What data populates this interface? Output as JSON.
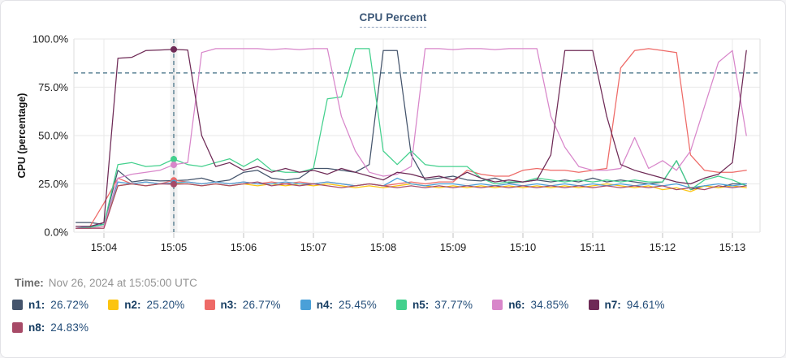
{
  "time_row": {
    "label": "Time:",
    "value": "Nov 26, 2024 at 15:05:00 UTC"
  },
  "chart_data": {
    "type": "line",
    "title": "CPU Percent",
    "ylabel": "CPU (percentage)",
    "ylim": [
      0,
      100
    ],
    "y_ticks": [
      {
        "label": "0.0%",
        "value": 0
      },
      {
        "label": "25.0%",
        "value": 25
      },
      {
        "label": "50.0%",
        "value": 50
      },
      {
        "label": "75.0%",
        "value": 75
      },
      {
        "label": "100.0%",
        "value": 100
      }
    ],
    "x_ticks": [
      {
        "label": "15:04",
        "minute": 4
      },
      {
        "label": "15:05",
        "minute": 5
      },
      {
        "label": "15:06",
        "minute": 6
      },
      {
        "label": "15:07",
        "minute": 7
      },
      {
        "label": "15:08",
        "minute": 8
      },
      {
        "label": "15:09",
        "minute": 9
      },
      {
        "label": "15:10",
        "minute": 10
      },
      {
        "label": "15:11",
        "minute": 11
      },
      {
        "label": "15:12",
        "minute": 12
      },
      {
        "label": "15:13",
        "minute": 13
      }
    ],
    "grid": true,
    "legend_position": "bottom",
    "crosshair": {
      "x_minute": 5.0,
      "y_percent": 82.4
    },
    "x_start_minute": 3.6,
    "x_step_minute": 0.2,
    "series": [
      {
        "name": "n1",
        "label": "n1:",
        "value_at_cursor": "26.72%",
        "cursor_value": 26.72,
        "color": "#44546c",
        "legend_row": 1,
        "values": [
          5,
          5,
          4,
          32,
          26,
          27,
          26.5,
          26.7,
          27,
          28,
          26,
          27,
          31,
          32,
          28,
          27,
          28,
          33,
          33,
          32,
          31,
          35,
          94,
          94,
          40,
          27,
          28,
          29,
          27,
          26.5,
          28,
          25.5,
          26,
          27,
          26,
          27,
          26,
          28,
          26,
          27,
          26,
          25,
          26,
          37,
          22,
          24,
          23,
          25,
          25
        ]
      },
      {
        "name": "n2",
        "label": "n2:",
        "value_at_cursor": "25.20%",
        "cursor_value": 25.2,
        "color": "#fcc40f",
        "legend_row": 1,
        "values": [
          2,
          2,
          3,
          24,
          25,
          24,
          25,
          25.2,
          25,
          24,
          25,
          24,
          25,
          24,
          25,
          24,
          25,
          24,
          25,
          24,
          23,
          24,
          23,
          24,
          25,
          24,
          23,
          24,
          23,
          24,
          23,
          24,
          23,
          24,
          23,
          24,
          23,
          24,
          25,
          24,
          23,
          24,
          22,
          23,
          21,
          24,
          23,
          24,
          23
        ]
      },
      {
        "name": "n3",
        "label": "n3:",
        "value_at_cursor": "26.77%",
        "cursor_value": 26.77,
        "color": "#ee6a67",
        "legend_row": 1,
        "values": [
          2,
          3,
          15,
          28,
          25,
          26,
          25,
          26.8,
          26,
          25,
          26,
          25,
          26,
          25,
          26,
          25,
          26,
          25,
          26,
          25,
          24,
          25,
          24,
          25,
          26,
          25,
          26,
          26,
          32,
          30,
          29,
          29,
          32,
          33,
          32,
          32,
          31,
          32,
          33,
          85,
          94,
          95,
          94,
          93,
          40,
          32,
          31,
          31,
          32
        ]
      },
      {
        "name": "n4",
        "label": "n4:",
        "value_at_cursor": "25.45%",
        "cursor_value": 25.45,
        "color": "#4aa0d8",
        "legend_row": 1,
        "values": [
          2,
          3,
          4,
          26,
          25,
          26,
          25,
          25.5,
          26,
          25,
          26,
          25,
          26,
          25,
          25,
          26,
          25,
          25,
          26,
          25,
          24,
          25,
          24,
          28,
          25,
          24,
          25,
          25,
          24,
          25,
          24,
          25,
          24,
          25,
          24,
          25,
          24,
          25,
          24,
          25,
          24,
          25,
          24,
          25,
          23,
          24,
          25,
          24,
          25
        ]
      },
      {
        "name": "n5",
        "label": "n5:",
        "value_at_cursor": "37.77%",
        "cursor_value": 37.77,
        "color": "#43d08d",
        "legend_row": 1,
        "values": [
          2,
          2.5,
          4,
          35,
          36,
          34,
          34.5,
          37.8,
          35,
          34,
          36,
          38,
          34,
          38,
          32,
          31,
          31,
          33,
          69,
          70,
          95,
          95,
          42,
          35,
          42,
          35,
          34,
          34,
          34,
          28,
          25,
          26,
          26,
          28,
          27,
          26,
          27,
          26,
          27,
          26,
          27,
          26,
          26,
          37,
          22,
          27,
          29,
          27,
          24
        ]
      },
      {
        "name": "n6",
        "label": "n6:",
        "value_at_cursor": "34.85%",
        "cursor_value": 34.85,
        "color": "#d886ca",
        "legend_row": 1,
        "values": [
          2,
          2,
          3,
          28,
          30,
          31,
          32,
          34.9,
          36,
          93,
          95,
          95,
          95,
          95,
          94.5,
          95,
          94.5,
          95,
          95,
          60,
          42,
          31,
          29,
          30,
          34,
          95,
          95,
          94.5,
          95,
          95,
          94.5,
          95,
          95,
          95,
          60,
          44,
          34,
          32,
          32,
          33,
          49,
          33,
          37,
          32,
          42,
          65,
          88,
          94,
          50
        ]
      },
      {
        "name": "n7",
        "label": "n7:",
        "value_at_cursor": "94.61%",
        "cursor_value": 94.61,
        "color": "#6e2a56",
        "legend_row": 1,
        "values": [
          3,
          3,
          5,
          90,
          90.5,
          94,
          94.3,
          94.6,
          94.3,
          50,
          34,
          36,
          32,
          34,
          31,
          33,
          31,
          32,
          30,
          33,
          31,
          29,
          27,
          31,
          30,
          28,
          29,
          27,
          31,
          28,
          26,
          27,
          26,
          27,
          40,
          94,
          94,
          94,
          60,
          35,
          32,
          30,
          28,
          26,
          25,
          28,
          30,
          36,
          94
        ]
      },
      {
        "name": "n8",
        "label": "n8:",
        "value_at_cursor": "24.83%",
        "cursor_value": 24.83,
        "color": "#a74a67",
        "legend_row": 2,
        "values": [
          2,
          2,
          2,
          24,
          25,
          24,
          25,
          24.8,
          25,
          24,
          25,
          24,
          25,
          26,
          24,
          25,
          24,
          25,
          24,
          23,
          24,
          25,
          24,
          23,
          24,
          23,
          24,
          23,
          24,
          23,
          24,
          23,
          24,
          23,
          24,
          23,
          24,
          23,
          24,
          23,
          24,
          23,
          24,
          22,
          23,
          22,
          24,
          23,
          24
        ]
      }
    ]
  }
}
